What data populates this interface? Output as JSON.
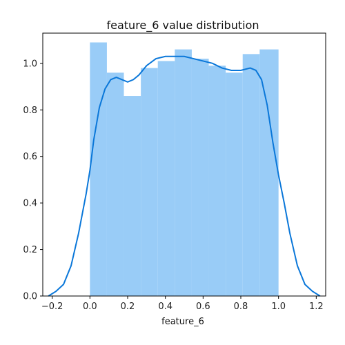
{
  "chart_data": {
    "type": "histogram",
    "title": "feature_6 value distribution",
    "xlabel": "feature_6",
    "ylabel": "",
    "xlim": [
      -0.25,
      1.25
    ],
    "ylim": [
      0,
      1.13
    ],
    "x_ticks": [
      -0.2,
      0.0,
      0.2,
      0.4,
      0.6,
      0.8,
      1.0,
      1.2
    ],
    "x_tick_labels": [
      "−0.2",
      "0.0",
      "0.2",
      "0.4",
      "0.6",
      "0.8",
      "1.0",
      "1.2"
    ],
    "y_ticks": [
      0.0,
      0.2,
      0.4,
      0.6,
      0.8,
      1.0
    ],
    "y_tick_labels": [
      "0.0",
      "0.2",
      "0.4",
      "0.6",
      "0.8",
      "1.0"
    ],
    "grid": false,
    "bins": [
      {
        "start": 0.0,
        "end": 0.09,
        "value": 1.09
      },
      {
        "start": 0.09,
        "end": 0.18,
        "value": 0.96
      },
      {
        "start": 0.18,
        "end": 0.27,
        "value": 0.86
      },
      {
        "start": 0.27,
        "end": 0.36,
        "value": 0.98
      },
      {
        "start": 0.36,
        "end": 0.45,
        "value": 1.01
      },
      {
        "start": 0.45,
        "end": 0.54,
        "value": 1.06
      },
      {
        "start": 0.54,
        "end": 0.63,
        "value": 1.02
      },
      {
        "start": 0.63,
        "end": 0.72,
        "value": 0.99
      },
      {
        "start": 0.72,
        "end": 0.81,
        "value": 0.96
      },
      {
        "start": 0.81,
        "end": 0.9,
        "value": 1.04
      },
      {
        "start": 0.9,
        "end": 1.0,
        "value": 1.06
      }
    ],
    "kde": {
      "x": [
        -0.22,
        -0.18,
        -0.14,
        -0.1,
        -0.06,
        -0.02,
        0.0,
        0.02,
        0.05,
        0.08,
        0.11,
        0.14,
        0.17,
        0.2,
        0.23,
        0.26,
        0.3,
        0.35,
        0.4,
        0.45,
        0.5,
        0.55,
        0.6,
        0.65,
        0.7,
        0.75,
        0.8,
        0.85,
        0.88,
        0.91,
        0.94,
        0.97,
        1.0,
        1.03,
        1.06,
        1.1,
        1.14,
        1.18,
        1.22
      ],
      "y": [
        0.0,
        0.02,
        0.05,
        0.13,
        0.27,
        0.44,
        0.54,
        0.67,
        0.81,
        0.89,
        0.93,
        0.94,
        0.93,
        0.92,
        0.93,
        0.95,
        0.99,
        1.02,
        1.03,
        1.03,
        1.03,
        1.02,
        1.01,
        1.0,
        0.98,
        0.97,
        0.97,
        0.98,
        0.97,
        0.93,
        0.82,
        0.66,
        0.52,
        0.4,
        0.27,
        0.13,
        0.05,
        0.02,
        0.0
      ]
    },
    "colors": {
      "bars": "#99ccf7",
      "kde_line": "#0a77d9",
      "axis": "#000000"
    }
  }
}
